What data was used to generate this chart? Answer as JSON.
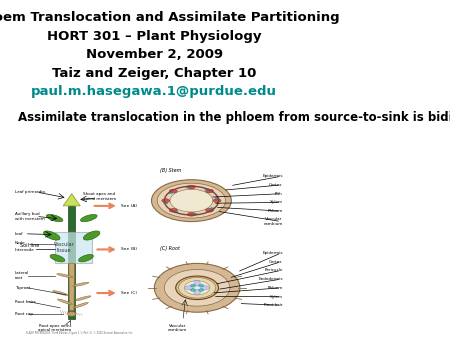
{
  "title_lines": [
    "Phloem Translocation and Assimilate Partitioning",
    "HORT 301 – Plant Physiology",
    "November 2, 2009",
    "Taiz and Zeiger, Chapter 10"
  ],
  "email": "paul.m.hasegawa.1@purdue.edu",
  "subtitle": "Assimilate translocation in the phloem from source-to-sink is bidirectional",
  "bg_color": "#ffffff",
  "title_fontsize": 9.5,
  "subtitle_fontsize": 8.5,
  "email_color": "#008B8B",
  "title_color": "#000000",
  "subtitle_color": "#000000"
}
